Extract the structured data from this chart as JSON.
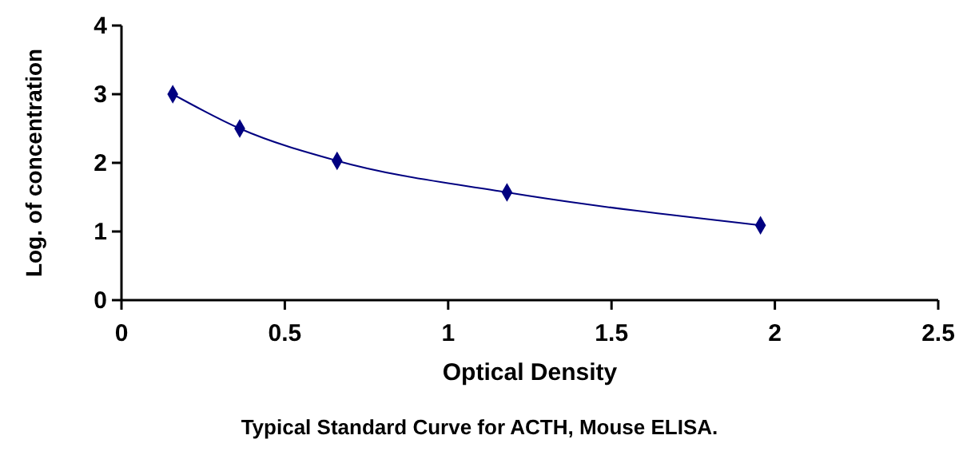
{
  "chart_data": {
    "type": "line",
    "xlabel": "Optical Density",
    "ylabel": "Log. of concentration",
    "annotations": [
      "Typical Standard Curve for ACTH, Mouse ELISA."
    ],
    "series": [
      {
        "color": "#000080",
        "x": [
          0.157,
          0.362,
          0.66,
          1.18,
          1.956
        ],
        "values": [
          3.0,
          2.5,
          2.03,
          1.57,
          1.09
        ]
      }
    ],
    "xlim": [
      0,
      2.5
    ],
    "xticks": [
      0,
      0.5,
      1,
      1.5,
      2,
      2.5
    ],
    "ylim": [
      0,
      4
    ],
    "yticks": [
      0,
      1,
      2,
      3,
      4
    ],
    "marker": "diamond",
    "line_style": "solid",
    "grid": false
  }
}
